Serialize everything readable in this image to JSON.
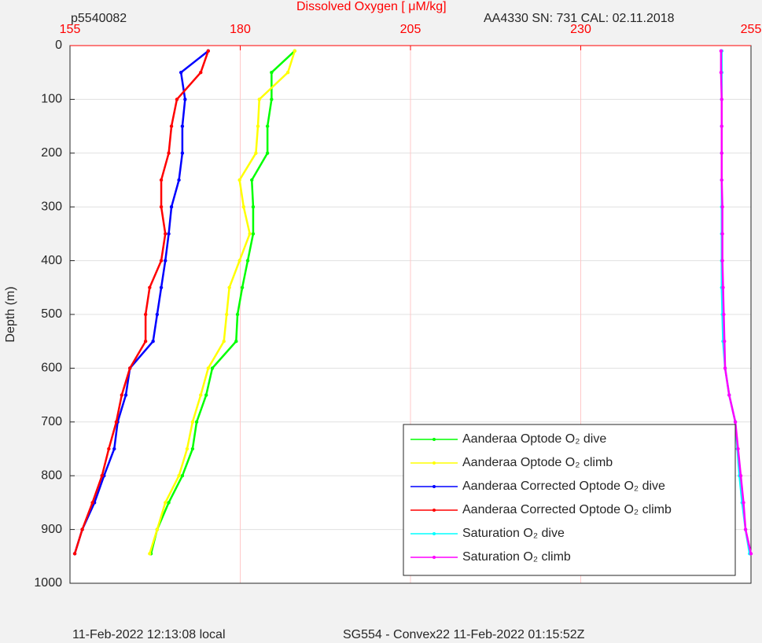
{
  "chart_data": {
    "type": "profile",
    "title": "Dissolved Oxygen [  μM/kg]",
    "annotations": [
      "p5540082",
      "AA4330   SN: 731   CAL: 02.11.2018",
      "11-Feb-2022 12:13:08 local",
      "SG554 - Convex22 11-Feb-2022 01:15:52Z"
    ],
    "y_label": "Depth (m)",
    "xlim": [
      155,
      255
    ],
    "xticks": [
      155,
      180,
      205,
      230,
      255
    ],
    "ylim": [
      0,
      1000
    ],
    "yticks": [
      0,
      100,
      200,
      300,
      400,
      500,
      600,
      700,
      800,
      900,
      1000
    ],
    "y_reversed": true,
    "x_axis_position": "top",
    "grid": true,
    "legend": "lower right",
    "y": [
      10,
      50,
      100,
      150,
      200,
      250,
      300,
      350,
      400,
      450,
      500,
      550,
      600,
      650,
      700,
      750,
      800,
      850,
      900,
      945
    ],
    "series": [
      {
        "name": "Aanderaa Optode O₂ dive",
        "color": "#00ff00",
        "x": [
          188,
          184.6,
          184.6,
          184,
          184,
          181.7,
          181.9,
          181.9,
          181.1,
          180.3,
          179.6,
          179.4,
          175.9,
          175,
          173.6,
          173,
          171.5,
          169.5,
          167.8,
          166.9
        ]
      },
      {
        "name": "Aanderaa Optode O₂ climb",
        "color": "#ffff00",
        "x": [
          188,
          187,
          182.8,
          182.6,
          182.3,
          179.9,
          180.5,
          181.4,
          179.9,
          178.4,
          178,
          177.6,
          175.3,
          174.2,
          173,
          172.2,
          171,
          169,
          167.8,
          166.7
        ]
      },
      {
        "name": "Aanderaa Corrected Optode O₂ dive",
        "color": "#0000ff",
        "x": [
          175.3,
          171.3,
          171.9,
          171.5,
          171.5,
          171,
          169.9,
          169.5,
          169,
          168.4,
          167.8,
          167.2,
          163.8,
          163.2,
          162,
          161.5,
          160,
          158.6,
          156.8,
          155.7
        ]
      },
      {
        "name": "Aanderaa Corrected Optode O₂ climb",
        "color": "#ff0000",
        "x": [
          175.3,
          174.2,
          170.7,
          169.9,
          169.5,
          168.4,
          168.4,
          169,
          168.4,
          166.7,
          166.1,
          166.1,
          163.8,
          162.6,
          161.8,
          160.7,
          159.7,
          158.3,
          156.8,
          155.7
        ]
      },
      {
        "name": "Saturation O₂ dive",
        "color": "#00ffff",
        "x": [
          250.7,
          250.7,
          250.7,
          250.7,
          250.7,
          250.7,
          250.7,
          250.7,
          250.7,
          250.7,
          250.8,
          250.9,
          251.2,
          251.8,
          252.7,
          253,
          253.3,
          253.7,
          254.2,
          254.8
        ]
      },
      {
        "name": "Saturation O₂ climb",
        "color": "#ff00ff",
        "x": [
          250.6,
          250.6,
          250.7,
          250.7,
          250.7,
          250.7,
          250.8,
          250.8,
          250.8,
          250.9,
          251,
          251.1,
          251.2,
          251.8,
          252.7,
          253.1,
          253.5,
          253.9,
          254.2,
          255
        ]
      }
    ]
  }
}
